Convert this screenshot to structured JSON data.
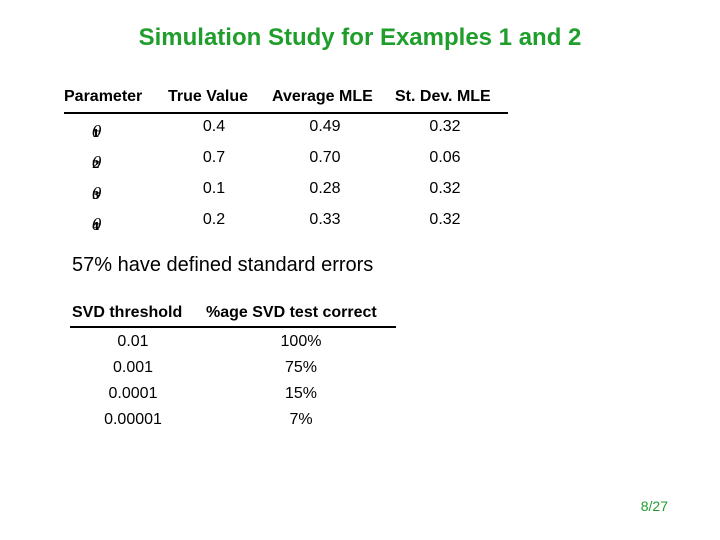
{
  "title": "Simulation Study for Examples 1 and 2",
  "table1": {
    "headers": [
      "Parameter",
      "True Value",
      "Average MLE",
      "St. Dev. MLE"
    ],
    "rows": [
      {
        "param_symbol": "θ",
        "param_sub": "1",
        "true_value": "0.4",
        "avg_mle": "0.49",
        "sd_mle": "0.32"
      },
      {
        "param_symbol": "θ",
        "param_sub": "2",
        "true_value": "0.7",
        "avg_mle": "0.70",
        "sd_mle": "0.06"
      },
      {
        "param_symbol": "θ",
        "param_sub": "3",
        "true_value": "0.1",
        "avg_mle": "0.28",
        "sd_mle": "0.32"
      },
      {
        "param_symbol": "θ",
        "param_sub": "4",
        "true_value": "0.2",
        "avg_mle": "0.33",
        "sd_mle": "0.32"
      }
    ]
  },
  "note": "57% have defined standard errors",
  "table2": {
    "headers": [
      "SVD threshold",
      "%age SVD test correct"
    ],
    "rows": [
      {
        "threshold": "0.01",
        "correct": "100%"
      },
      {
        "threshold": "0.001",
        "correct": "75%"
      },
      {
        "threshold": "0.0001",
        "correct": "15%"
      },
      {
        "threshold": "0.00001",
        "correct": "7%"
      }
    ]
  },
  "page_number": "8/27",
  "colors": {
    "accent": "#1f9e2c"
  }
}
